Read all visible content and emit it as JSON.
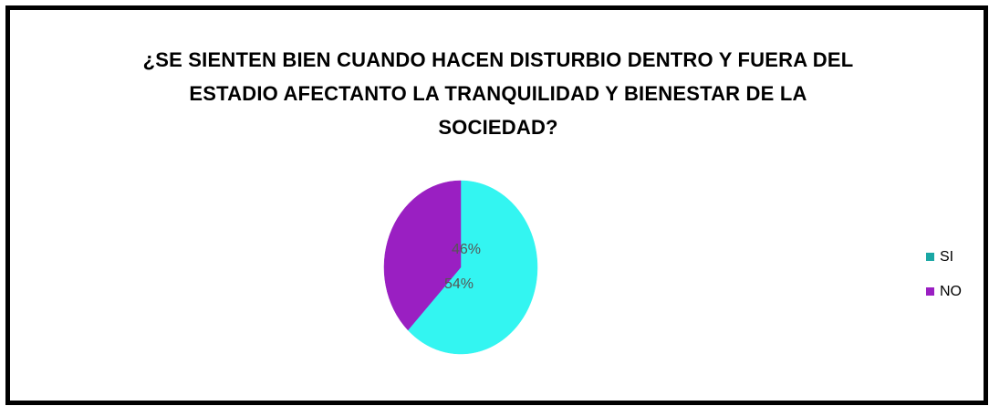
{
  "chart_data": {
    "type": "pie",
    "title_lines": [
      "¿SE SIENTEN BIEN CUANDO HACEN DISTURBIO DENTRO Y FUERA DEL",
      "ESTADIO AFECTANTO LA TRANQUILIDAD Y BIENESTAR DE LA",
      "SOCIEDAD?"
    ],
    "slices": [
      {
        "name": "SI",
        "value": 46,
        "label": "46%",
        "color": "#33f5f1"
      },
      {
        "name": "NO",
        "value": 54,
        "label": "54%",
        "color": "#9a1fc2"
      }
    ],
    "legend_position": "right"
  }
}
